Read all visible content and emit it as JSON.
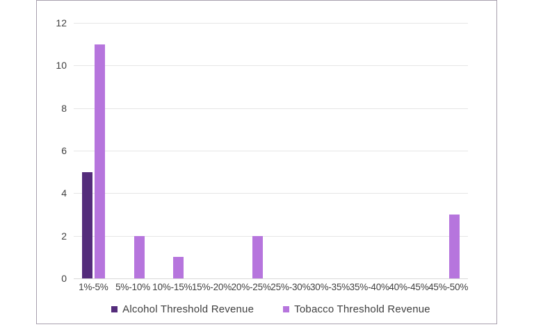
{
  "colors": {
    "alcohol": "#542c7b",
    "tobacco": "#b675dd",
    "frame_border": "#a79fad",
    "gridline": "#e6e6e6",
    "axis_text": "#404040",
    "background": "#ffffff"
  },
  "chart_data": {
    "type": "bar",
    "title": "",
    "xlabel": "",
    "ylabel": "",
    "categories": [
      "1%-5%",
      "5%-10%",
      "10%-15%",
      "15%-20%",
      "20%-25%",
      "25%-30%",
      "30%-35%",
      "35%-40%",
      "40%-45%",
      "45%-50%"
    ],
    "series": [
      {
        "name": "Alcohol Threshold Revenue",
        "color": "#542c7b",
        "values": [
          5,
          0,
          0,
          0,
          0,
          0,
          0,
          0,
          0,
          0
        ]
      },
      {
        "name": "Tobacco Threshold Revenue",
        "color": "#b675dd",
        "values": [
          11,
          2,
          1,
          0,
          2,
          0,
          0,
          0,
          0,
          3
        ]
      }
    ],
    "ylim": [
      0,
      12
    ],
    "yticks": [
      0,
      2,
      4,
      6,
      8,
      10,
      12
    ],
    "grid": true,
    "legend_position": "bottom"
  }
}
